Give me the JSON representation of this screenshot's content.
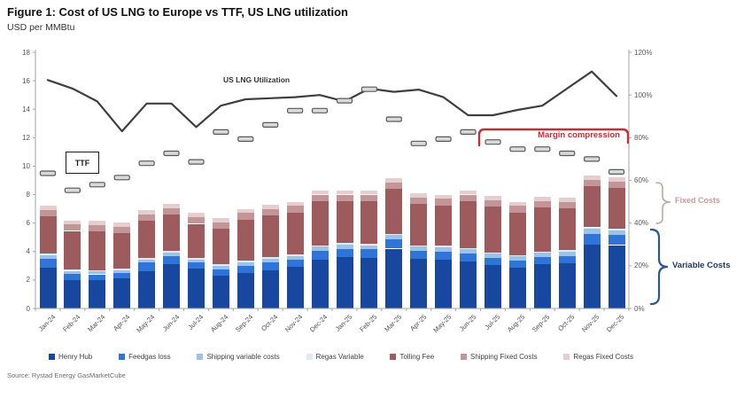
{
  "header": {
    "title": "Figure 1: Cost of US LNG to Europe vs TTF, US LNG utilization",
    "subtitle": "USD per MMBtu",
    "source": "Source: Rystad Energy GasMarketCube"
  },
  "annotations": {
    "utilization_label": "US LNG Utilization",
    "ttf_label": "TTF",
    "margin_compression": "Margin compression",
    "fixed_costs": "Fixed Costs",
    "variable_costs": "Variable Costs"
  },
  "colors": {
    "line": "#3F3F3F",
    "ttf_marker_fill": "#D9D9D9",
    "ttf_marker_border": "#595959",
    "margin_red": "#BE3134",
    "fixed_label": "#C9999B",
    "fixed_brace": "#C8A2A4",
    "variable_label": "#1F3864",
    "variable_brace": "#2E5597",
    "axis": "#A6A6A6",
    "tick_text": "#595959"
  },
  "chart_data": {
    "type": "combo (stacked bar + line on secondary axis + dash markers)",
    "title": "Figure 1: Cost of US LNG to Europe vs TTF, US LNG utilization",
    "ylabel_left": "USD per MMBtu",
    "left_axis": {
      "min": 0,
      "max": 18,
      "ticks": [
        0,
        2,
        4,
        6,
        8,
        10,
        12,
        14,
        16,
        18
      ]
    },
    "right_axis": {
      "min_pct": 0,
      "max_pct": 120,
      "ticks": [
        "0%",
        "20%",
        "40%",
        "60%",
        "80%",
        "100%",
        "120%"
      ]
    },
    "grid": "off",
    "legend_position": "bottom",
    "categories": [
      "Jan-24",
      "Feb-24",
      "Mar-24",
      "Apr-24",
      "May-24",
      "Jun-24",
      "Jul-24",
      "Aug-24",
      "Sep-24",
      "Oct-24",
      "Nov-24",
      "Dec-24",
      "Jan-25",
      "Feb-25",
      "Mar-25",
      "Apr-25",
      "May-25",
      "Jun-25",
      "Jul-25",
      "Aug-25",
      "Sep-25",
      "Oct-25",
      "Nov-25",
      "Dec-25"
    ],
    "bar_series": [
      {
        "name": "Henry Hub",
        "color": "#17479E",
        "values": [
          2.85,
          2.0,
          2.0,
          2.1,
          2.6,
          3.1,
          2.8,
          2.3,
          2.5,
          2.7,
          2.9,
          3.4,
          3.6,
          3.55,
          4.2,
          3.5,
          3.45,
          3.3,
          3.05,
          2.85,
          3.1,
          3.15,
          4.5,
          4.45
        ]
      },
      {
        "name": "Feedgas loss",
        "color": "#2E74D9",
        "values": [
          0.65,
          0.45,
          0.4,
          0.4,
          0.65,
          0.6,
          0.45,
          0.45,
          0.5,
          0.55,
          0.55,
          0.65,
          0.6,
          0.6,
          0.65,
          0.55,
          0.55,
          0.55,
          0.5,
          0.5,
          0.5,
          0.55,
          0.75,
          0.7
        ]
      },
      {
        "name": "Shipping variable costs",
        "color": "#9CC2E5",
        "values": [
          0.25,
          0.2,
          0.2,
          0.2,
          0.2,
          0.25,
          0.2,
          0.25,
          0.25,
          0.25,
          0.25,
          0.3,
          0.3,
          0.3,
          0.3,
          0.3,
          0.3,
          0.3,
          0.3,
          0.3,
          0.3,
          0.3,
          0.35,
          0.35
        ]
      },
      {
        "name": "Regas Variable",
        "color": "#DEEAF6",
        "values": [
          0.1,
          0.1,
          0.1,
          0.1,
          0.1,
          0.1,
          0.1,
          0.1,
          0.1,
          0.1,
          0.1,
          0.1,
          0.1,
          0.1,
          0.1,
          0.1,
          0.1,
          0.1,
          0.1,
          0.1,
          0.1,
          0.1,
          0.1,
          0.1
        ]
      },
      {
        "name": "Tolling Fee",
        "color": "#9D5B5E",
        "values": [
          2.6,
          2.7,
          2.7,
          2.5,
          2.6,
          2.55,
          2.4,
          2.5,
          2.9,
          2.95,
          2.95,
          3.1,
          2.95,
          3.0,
          3.15,
          2.9,
          2.85,
          3.3,
          3.2,
          3.0,
          3.1,
          2.95,
          2.9,
          2.85
        ]
      },
      {
        "name": "Shipping Fixed Costs",
        "color": "#C49597",
        "values": [
          0.45,
          0.45,
          0.45,
          0.45,
          0.45,
          0.45,
          0.45,
          0.45,
          0.45,
          0.45,
          0.45,
          0.45,
          0.45,
          0.45,
          0.45,
          0.45,
          0.45,
          0.45,
          0.45,
          0.45,
          0.45,
          0.45,
          0.45,
          0.45
        ]
      },
      {
        "name": "Regas Fixed Costs",
        "color": "#E5CECF",
        "values": [
          0.3,
          0.3,
          0.3,
          0.3,
          0.3,
          0.3,
          0.3,
          0.3,
          0.3,
          0.3,
          0.3,
          0.3,
          0.3,
          0.3,
          0.3,
          0.3,
          0.3,
          0.3,
          0.3,
          0.3,
          0.3,
          0.3,
          0.3,
          0.3
        ]
      }
    ],
    "ttf_series": {
      "name": "TTF",
      "unit": "USD per MMBtu",
      "values": [
        9.5,
        8.3,
        8.7,
        9.2,
        10.2,
        10.9,
        10.3,
        12.4,
        11.9,
        12.9,
        13.9,
        13.9,
        14.6,
        15.4,
        13.3,
        11.6,
        11.9,
        12.4,
        11.7,
        11.2,
        11.2,
        10.9,
        10.5,
        9.6
      ]
    },
    "line_series": {
      "name": "US LNG Utilization",
      "axis": "right",
      "values_pct": [
        107,
        103,
        97,
        83,
        96,
        96,
        85,
        95,
        98,
        98.5,
        99,
        100,
        97,
        103,
        101.5,
        102.5,
        99,
        90.5,
        90.5,
        93,
        95,
        103,
        111,
        99.5
      ]
    }
  }
}
